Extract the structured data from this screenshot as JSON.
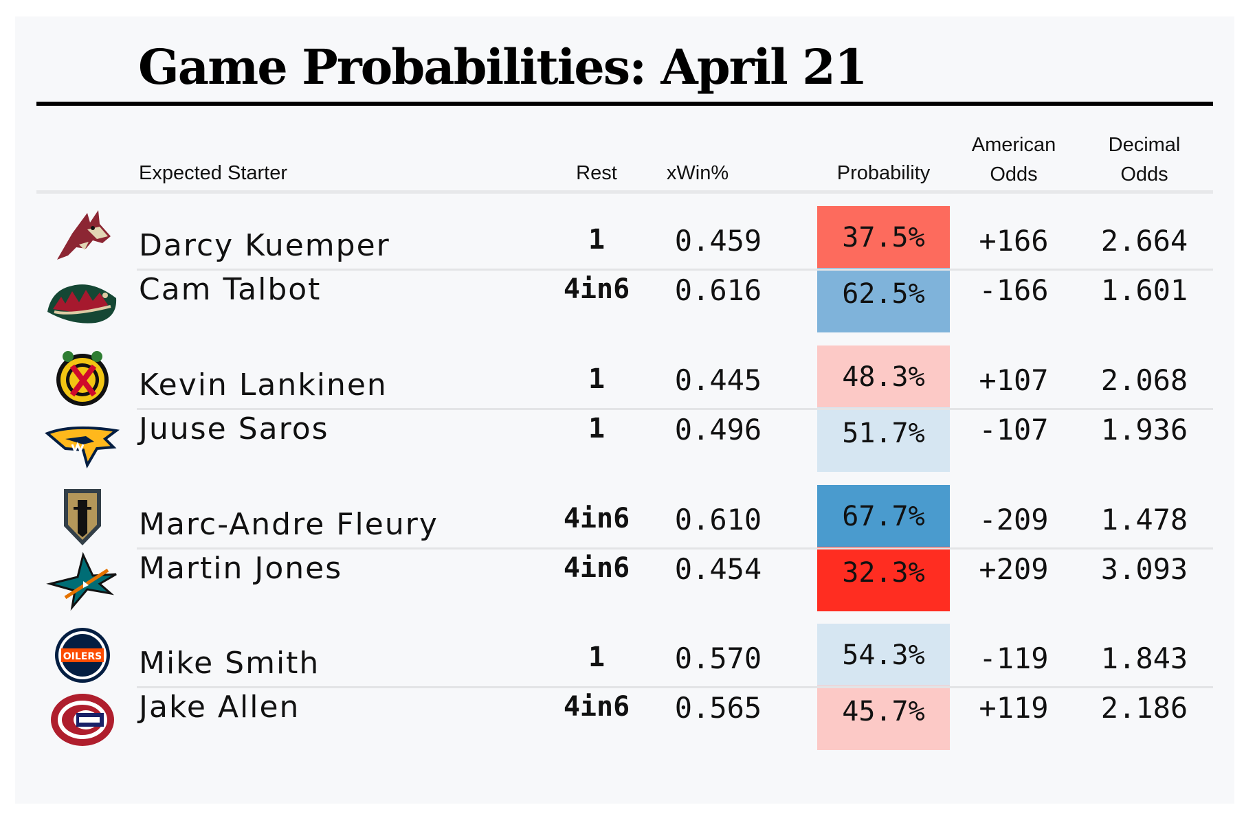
{
  "title": "Game Probabilities: April 21",
  "headers": {
    "starter": "Expected Starter",
    "rest": "Rest",
    "xwin": "xWin%",
    "probability": "Probability",
    "american_1": "American",
    "american_2": "Odds",
    "decimal_1": "Decimal",
    "decimal_2": "Odds"
  },
  "colors": {
    "strong_red": "#ff2d21",
    "mid_red": "#fd6b5d",
    "light_red": "#fcc9c6",
    "light_blue": "#d6e6f2",
    "mid_blue": "#7fb3da",
    "strong_blue": "#4a9bce"
  },
  "chart_data": {
    "type": "table",
    "title": "Game Probabilities: April 21",
    "columns": [
      "Expected Starter",
      "Rest",
      "xWin%",
      "Probability",
      "American Odds",
      "Decimal Odds"
    ],
    "games": [
      {
        "teams": [
          {
            "logo": "arizona-coyotes-logo",
            "starter": "Darcy Kuemper",
            "rest": "1",
            "xwin": "0.459",
            "probability": "37.5%",
            "prob_value": 37.5,
            "american": "+166",
            "decimal": "2.664",
            "color": "#fd6b5d"
          },
          {
            "logo": "minnesota-wild-logo",
            "starter": "Cam Talbot",
            "rest": "4in6",
            "xwin": "0.616",
            "probability": "62.5%",
            "prob_value": 62.5,
            "american": "-166",
            "decimal": "1.601",
            "color": "#7fb3da"
          }
        ]
      },
      {
        "teams": [
          {
            "logo": "chicago-blackhawks-logo",
            "starter": "Kevin Lankinen",
            "rest": "1",
            "xwin": "0.445",
            "probability": "48.3%",
            "prob_value": 48.3,
            "american": "+107",
            "decimal": "2.068",
            "color": "#fcc9c6"
          },
          {
            "logo": "nashville-predators-logo",
            "starter": "Juuse Saros",
            "rest": "1",
            "xwin": "0.496",
            "probability": "51.7%",
            "prob_value": 51.7,
            "american": "-107",
            "decimal": "1.936",
            "color": "#d6e6f2"
          }
        ]
      },
      {
        "teams": [
          {
            "logo": "vegas-golden-knights-logo",
            "starter": "Marc-Andre Fleury",
            "rest": "4in6",
            "xwin": "0.610",
            "probability": "67.7%",
            "prob_value": 67.7,
            "american": "-209",
            "decimal": "1.478",
            "color": "#4a9bce"
          },
          {
            "logo": "san-jose-sharks-logo",
            "starter": "Martin Jones",
            "rest": "4in6",
            "xwin": "0.454",
            "probability": "32.3%",
            "prob_value": 32.3,
            "american": "+209",
            "decimal": "3.093",
            "color": "#ff2d21"
          }
        ]
      },
      {
        "teams": [
          {
            "logo": "edmonton-oilers-logo",
            "starter": "Mike Smith",
            "rest": "1",
            "xwin": "0.570",
            "probability": "54.3%",
            "prob_value": 54.3,
            "american": "-119",
            "decimal": "1.843",
            "color": "#d6e6f2"
          },
          {
            "logo": "montreal-canadiens-logo",
            "starter": "Jake Allen",
            "rest": "4in6",
            "xwin": "0.565",
            "probability": "45.7%",
            "prob_value": 45.7,
            "american": "+119",
            "decimal": "2.186",
            "color": "#fcc9c6"
          }
        ]
      }
    ]
  }
}
